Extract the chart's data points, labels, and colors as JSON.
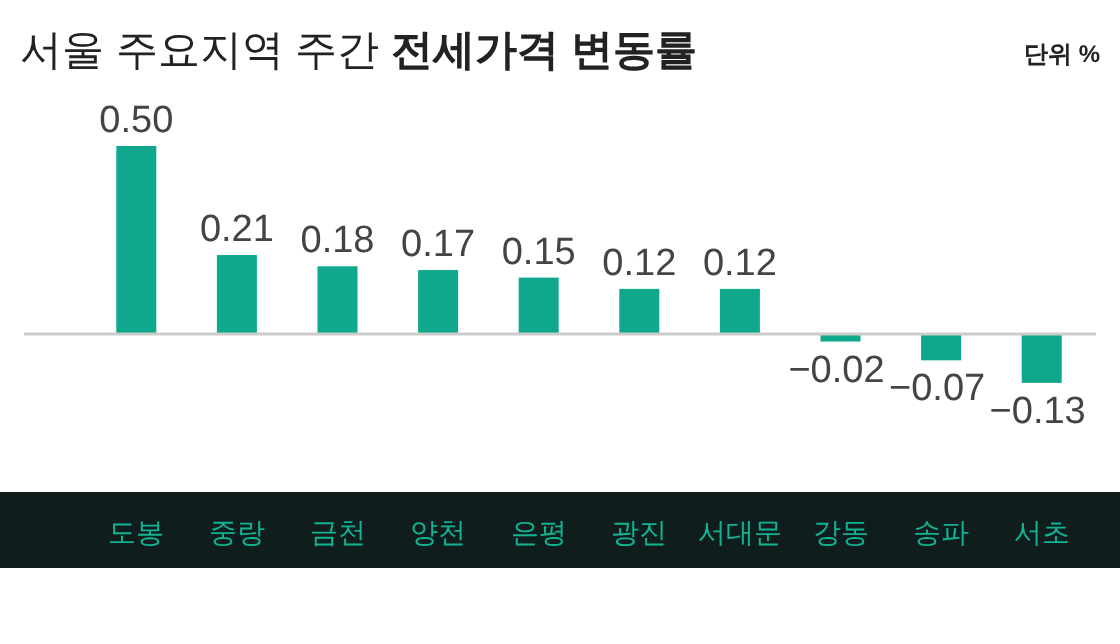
{
  "chart_data": {
    "type": "bar",
    "title": "서울 주요지역 주간 전세가격 변동률",
    "annotations": [
      "단위 %"
    ],
    "categories": [
      "도봉",
      "중랑",
      "금천",
      "양천",
      "은평",
      "광진",
      "서대문",
      "강동",
      "송파",
      "서초"
    ],
    "values": [
      0.5,
      0.21,
      0.18,
      0.17,
      0.15,
      0.12,
      0.12,
      -0.02,
      -0.07,
      -0.13
    ],
    "value_labels": [
      "0.50",
      "0.21",
      "0.18",
      "0.17",
      "0.15",
      "0.12",
      "0.12",
      "−0.02",
      "−0.07",
      "−0.13"
    ],
    "color": "#0fa88c"
  }
}
